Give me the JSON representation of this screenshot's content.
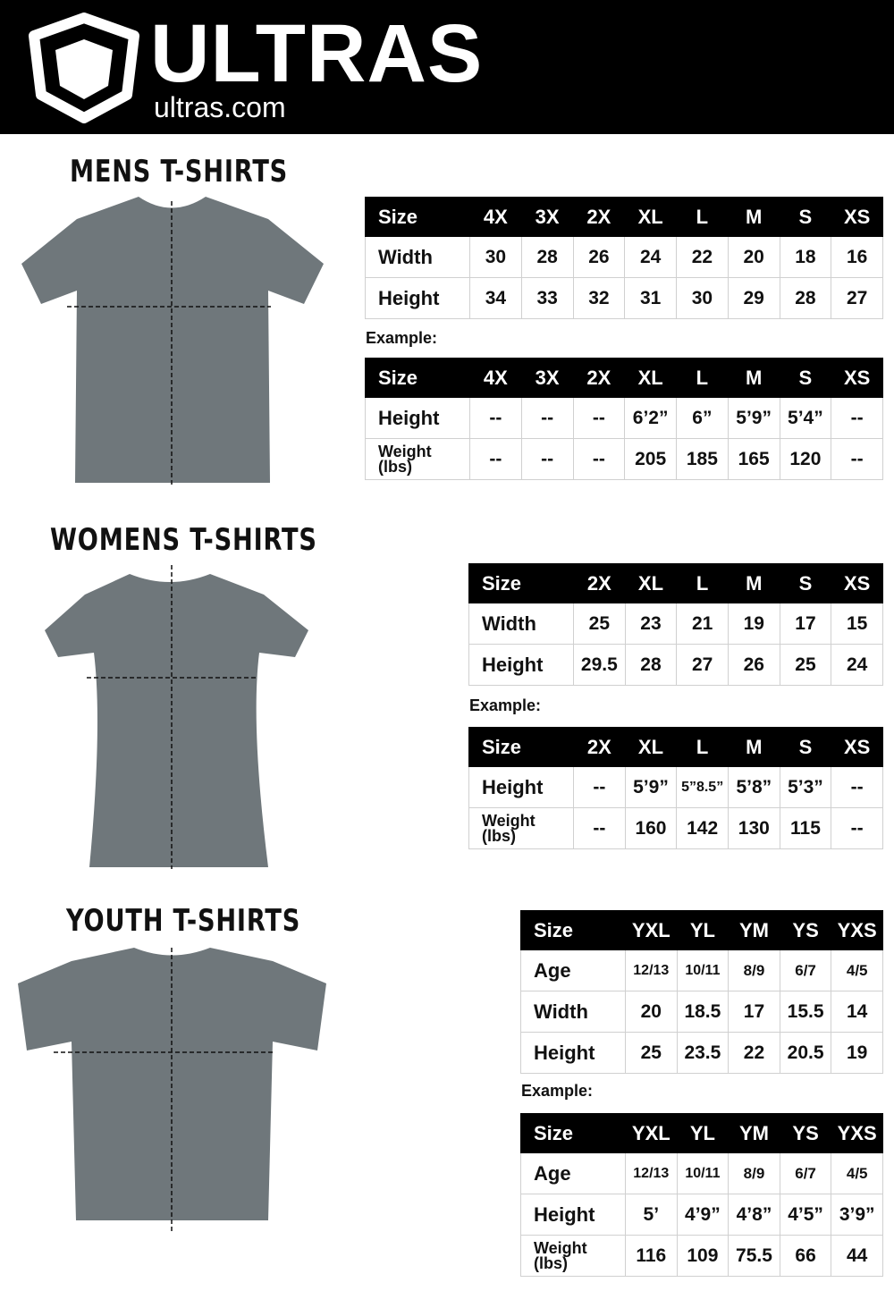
{
  "brand": {
    "name": "ULTRAS",
    "site": "ultras.com",
    "logo": "shield-pentagon-icon"
  },
  "colors": {
    "header_bg": "#000000",
    "shirt": "#6f777b"
  },
  "example_label": "Example:",
  "mens": {
    "title": "MENS T-SHIRTS",
    "measure": {
      "header": [
        "Size",
        "4X",
        "3X",
        "2X",
        "XL",
        "L",
        "M",
        "S",
        "XS"
      ],
      "rows": [
        [
          "Width",
          "30",
          "28",
          "26",
          "24",
          "22",
          "20",
          "18",
          "16"
        ],
        [
          "Height",
          "34",
          "33",
          "32",
          "31",
          "30",
          "29",
          "28",
          "27"
        ]
      ]
    },
    "example": {
      "header": [
        "Size",
        "4X",
        "3X",
        "2X",
        "XL",
        "L",
        "M",
        "S",
        "XS"
      ],
      "rows": [
        [
          "Height",
          "--",
          "--",
          "--",
          "6’2”",
          "6”",
          "5’9”",
          "5’4”",
          "--"
        ],
        [
          "Weight (lbs)",
          "--",
          "--",
          "--",
          "205",
          "185",
          "165",
          "120",
          "--"
        ]
      ]
    }
  },
  "womens": {
    "title": "WOMENS T-SHIRTS",
    "measure": {
      "header": [
        "Size",
        "2X",
        "XL",
        "L",
        "M",
        "S",
        "XS"
      ],
      "rows": [
        [
          "Width",
          "25",
          "23",
          "21",
          "19",
          "17",
          "15"
        ],
        [
          "Height",
          "29.5",
          "28",
          "27",
          "26",
          "25",
          "24"
        ]
      ]
    },
    "example": {
      "header": [
        "Size",
        "2X",
        "XL",
        "L",
        "M",
        "S",
        "XS"
      ],
      "rows": [
        [
          "Height",
          "--",
          "5’9”",
          "5”8.5”",
          "5’8”",
          "5’3”",
          "--"
        ],
        [
          "Weight (lbs)",
          "--",
          "160",
          "142",
          "130",
          "115",
          "--"
        ]
      ]
    }
  },
  "youth": {
    "title": "YOUTH T-SHIRTS",
    "measure": {
      "header": [
        "Size",
        "YXL",
        "YL",
        "YM",
        "YS",
        "YXS"
      ],
      "rows": [
        [
          "Age",
          "12/13",
          "10/11",
          "8/9",
          "6/7",
          "4/5"
        ],
        [
          "Width",
          "20",
          "18.5",
          "17",
          "15.5",
          "14"
        ],
        [
          "Height",
          "25",
          "23.5",
          "22",
          "20.5",
          "19"
        ]
      ]
    },
    "example": {
      "header": [
        "Size",
        "YXL",
        "YL",
        "YM",
        "YS",
        "YXS"
      ],
      "rows": [
        [
          "Age",
          "12/13",
          "10/11",
          "8/9",
          "6/7",
          "4/5"
        ],
        [
          "Height",
          "5’",
          "4’9”",
          "4’8”",
          "4’5”",
          "3’9”"
        ],
        [
          "Weight (lbs)",
          "116",
          "109",
          "75.5",
          "66",
          "44"
        ]
      ]
    }
  }
}
